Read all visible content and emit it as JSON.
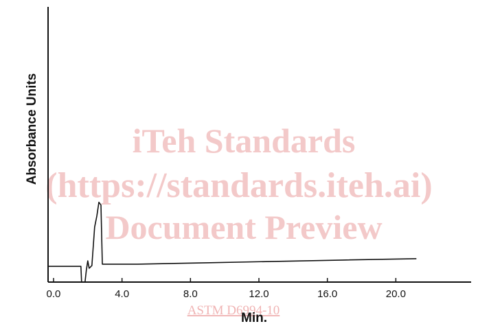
{
  "chart_data": {
    "type": "line",
    "xlabel": "Min.",
    "ylabel": "Absorbance Units",
    "x": [
      -0.32,
      1.6,
      1.64,
      1.84,
      1.92,
      2.0,
      2.08,
      2.24,
      2.4,
      2.53,
      2.65,
      2.77,
      2.85,
      4.9,
      8.9,
      12.9,
      16.9,
      21.2
    ],
    "series": [
      {
        "color": "#111111",
        "values": [
          5.7,
          5.7,
          0,
          0,
          4.5,
          7.7,
          5,
          6,
          20,
          24,
          29,
          28,
          6.5,
          6.5,
          7,
          7.5,
          8,
          8.5
        ]
      }
    ],
    "xlim": [
      -0.32,
      24.4
    ],
    "ylim": [
      0,
      100
    ],
    "xticks": [
      {
        "value": 0,
        "label": "0.0"
      },
      {
        "value": 4,
        "label": "4.0"
      },
      {
        "value": 8,
        "label": "8.0"
      },
      {
        "value": 12,
        "label": "12.0"
      },
      {
        "value": 16,
        "label": "16.0"
      },
      {
        "value": 20,
        "label": "20.0"
      }
    ],
    "watermarks": [
      "iTeh Standards",
      "(https://standards.iteh.ai)",
      "Document Preview"
    ],
    "footer_link": "ASTM D6994-10"
  }
}
